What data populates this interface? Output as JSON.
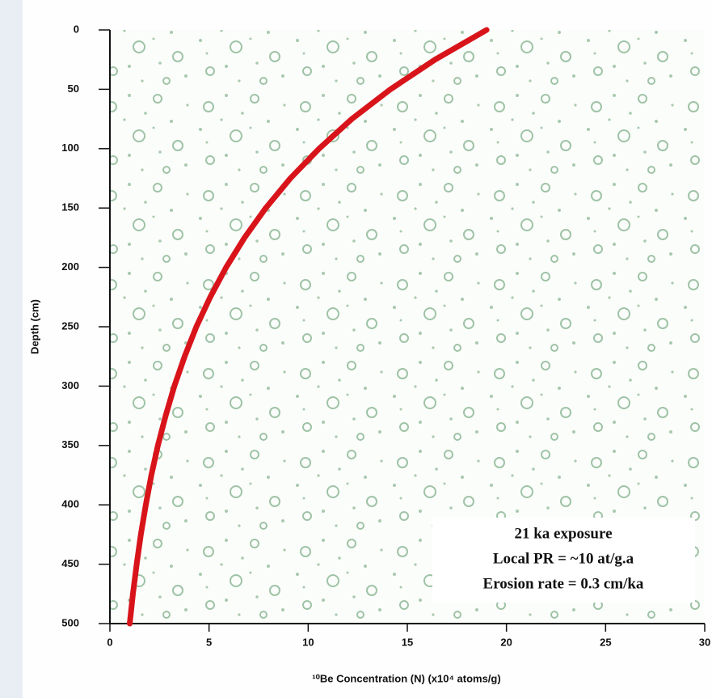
{
  "chart_data": {
    "type": "line",
    "x_label": "¹⁰Be Concentration (N) (x10⁴ atoms/g)",
    "y_label": "Depth (cm)",
    "annotations": [
      "21 ka exposure",
      "Local PR = ~10 at/g.a",
      "Erosion rate = 0.3 cm/ka"
    ],
    "x": [
      19.0,
      16.4,
      14.15,
      12.2,
      10.55,
      9.1,
      7.86,
      6.79,
      5.86,
      5.06,
      4.36,
      3.77,
      3.25,
      2.81,
      2.42,
      2.09,
      1.81,
      1.56,
      1.35,
      1.16,
      1.0
    ],
    "values": [
      0,
      25,
      50,
      75,
      100,
      125,
      150,
      175,
      200,
      225,
      250,
      275,
      300,
      325,
      350,
      375,
      400,
      425,
      450,
      475,
      500
    ],
    "color": "#d8141a",
    "xlim": [
      0,
      30
    ],
    "xticks": [
      0,
      5,
      10,
      15,
      20,
      25,
      30
    ],
    "ylim": [
      0,
      500
    ],
    "yticks": [
      0,
      50,
      100,
      150,
      200,
      250,
      300,
      350,
      400,
      450,
      500
    ],
    "y_inverted": true
  }
}
